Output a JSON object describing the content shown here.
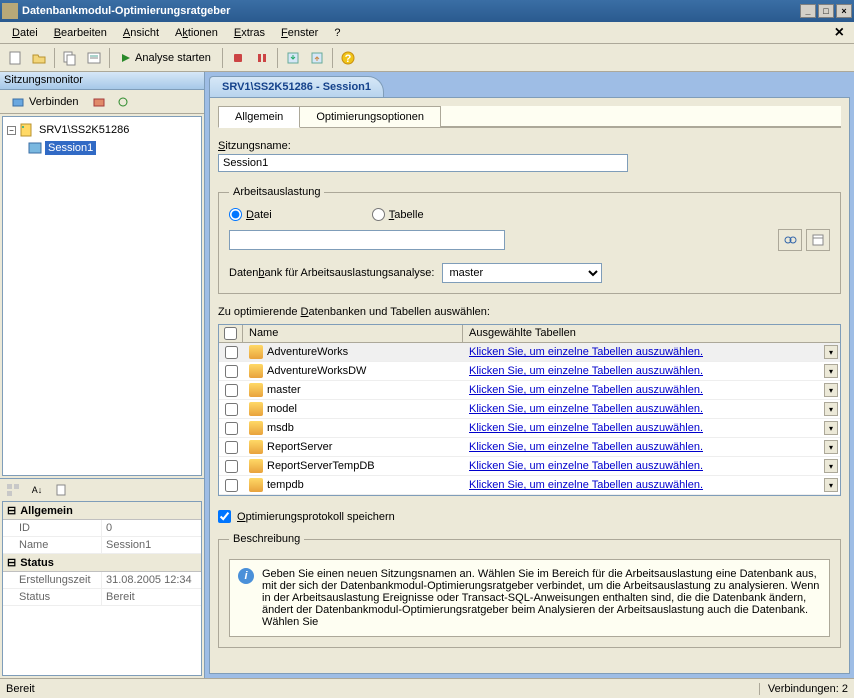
{
  "window": {
    "title": "Datenbankmodul-Optimierungsratgeber"
  },
  "menu": {
    "datei": "Datei",
    "bearbeiten": "Bearbeiten",
    "ansicht": "Ansicht",
    "aktionen": "Aktionen",
    "extras": "Extras",
    "fenster": "Fenster",
    "hilfe": "?"
  },
  "toolbar": {
    "analyse_starten": "Analyse starten"
  },
  "sidebar": {
    "title": "Sitzungsmonitor",
    "verbinden": "Verbinden",
    "server": "SRV1\\SS2K51286",
    "session": "Session1"
  },
  "props": {
    "cat_allgemein": "Allgemein",
    "id_label": "ID",
    "id_value": "0",
    "name_label": "Name",
    "name_value": "Session1",
    "cat_status": "Status",
    "erstellung_label": "Erstellungszeit",
    "erstellung_value": "31.08.2005 12:34",
    "status_label": "Status",
    "status_value": "Bereit"
  },
  "session": {
    "tab_title": "SRV1\\SS2K51286 - Session1",
    "tab_allgemein": "Allgemein",
    "tab_optimierung": "Optimierungsoptionen",
    "sitzungsname_label": "Sitzungsname:",
    "sitzungsname_value": "Session1",
    "arbeitsauslastung_legend": "Arbeitsauslastung",
    "radio_datei": "Datei",
    "radio_tabelle": "Tabelle",
    "db_analyse_label": "Datenbank für Arbeitsauslastungsanalyse:",
    "db_analyse_value": "master",
    "select_db_label": "Zu optimierende Datenbanken und Tabellen auswählen:",
    "col_name": "Name",
    "col_selected": "Ausgewählte Tabellen",
    "link_text": "Klicken Sie, um einzelne Tabellen auszuwählen.",
    "databases": [
      "AdventureWorks",
      "AdventureWorksDW",
      "master",
      "model",
      "msdb",
      "ReportServer",
      "ReportServerTempDB",
      "tempdb"
    ],
    "save_log_label": "Optimierungsprotokoll speichern",
    "beschreibung_legend": "Beschreibung",
    "beschreibung_text": "Geben Sie einen neuen Sitzungsnamen an. Wählen Sie im Bereich für die Arbeitsauslastung eine Datenbank aus, mit der sich der Datenbankmodul-Optimierungsratgeber verbindet, um die Arbeitsauslastung zu analysieren. Wenn in der Arbeitsauslastung Ereignisse oder Transact-SQL-Anweisungen enthalten sind, die die Datenbank ändern, ändert der Datenbankmodul-Optimierungsratgeber  beim Analysieren der Arbeitsauslastung auch die Datenbank. Wählen Sie"
  },
  "statusbar": {
    "ready": "Bereit",
    "connections": "Verbindungen: 2"
  },
  "colors": {
    "titlebar_grad_top": "#3a6ea5",
    "titlebar_grad_bot": "#2a5a8f",
    "bg": "#ece9d8",
    "border": "#7f9db9",
    "accent_blue": "#316ac5",
    "link": "#0000cc"
  }
}
